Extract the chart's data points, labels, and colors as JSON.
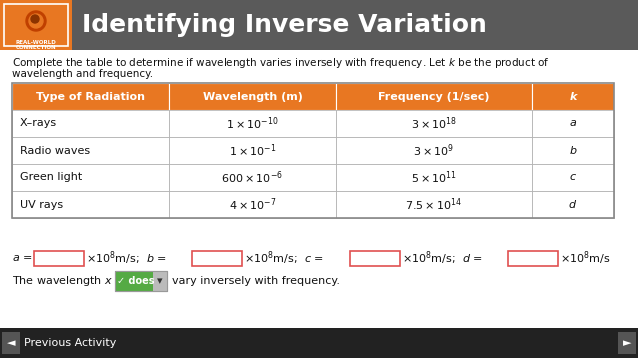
{
  "title": "Identifying Inverse Variation",
  "header_bg": "#5a5a5a",
  "orange_color": "#E87722",
  "col_headers": [
    "Type of Radiation",
    "Wavelength (m)",
    "Frequency (1/sec)",
    "k"
  ],
  "rows_display": [
    [
      "X–rays",
      "$1 \\times 10^{-10}$",
      "$3 \\times 10^{18}$",
      "$a$"
    ],
    [
      "Radio waves",
      "$1 \\times 10^{-1}$",
      "$3 \\times 10^{9}$",
      "$b$"
    ],
    [
      "Green light",
      "$600 \\times 10^{-6}$",
      "$5 \\times 10^{11}$",
      "$c$"
    ],
    [
      "UV rays",
      "$4 \\times 10^{-7}$",
      "$7.5 \\times 10^{14}$",
      "$d$"
    ]
  ],
  "footer_bg": "#222222",
  "footer_text_color": "#ffffff",
  "body_bg": "#ffffff",
  "table_border_color": "#888888",
  "table_line_color": "#cccccc",
  "input_box_border": "#e05050",
  "input_box_fill": "#ffffff",
  "does_btn_color": "#55aa44",
  "does_btn_border": "#888888"
}
